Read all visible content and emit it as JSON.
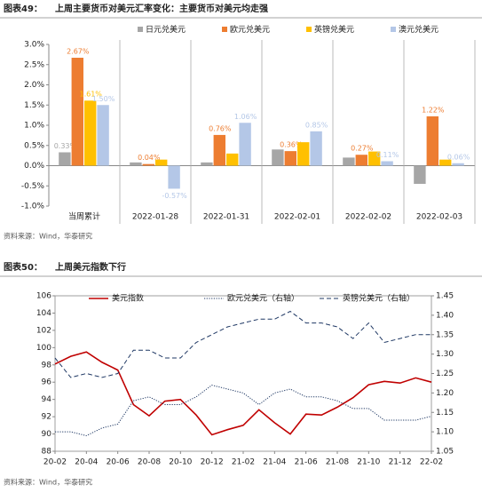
{
  "headers": [
    {
      "label": "图表49：",
      "title": "上周主要货币对美元汇率变化：主要货币对美元均走强"
    },
    {
      "label": "图表50：",
      "title": "上周美元指数下行"
    }
  ],
  "sources": [
    "资料来源：Wind，华泰研究",
    "资料来源：Wind，华泰研究"
  ],
  "chart_data": [
    {
      "type": "bar",
      "legend": "top",
      "categories": [
        "当周累计",
        "2022-01-28",
        "2022-01-31",
        "2022-02-01",
        "2022-02-02",
        "2022-02-03"
      ],
      "series": [
        {
          "name": "日元兑美元",
          "color": "#a6a6a6",
          "values": [
            0.33,
            0.08,
            0.08,
            0.4,
            0.2,
            -0.45
          ],
          "value_labels": [
            "0.33%",
            null,
            null,
            null,
            null,
            null
          ]
        },
        {
          "name": "欧元兑美元",
          "color": "#ed7d31",
          "values": [
            2.67,
            0.04,
            0.76,
            0.36,
            0.27,
            1.22
          ],
          "value_labels": [
            "2.67%",
            "0.04%",
            "0.76%",
            "0.36%",
            "0.27%",
            "1.22%"
          ]
        },
        {
          "name": "英镑兑美元",
          "color": "#ffc000",
          "values": [
            1.61,
            0.15,
            0.3,
            0.58,
            0.35,
            0.15
          ],
          "value_labels": [
            "1.61%",
            null,
            null,
            null,
            null,
            null
          ]
        },
        {
          "name": "澳元兑美元",
          "color": "#b4c7e7",
          "values": [
            1.5,
            -0.57,
            1.06,
            0.85,
            0.11,
            0.06
          ],
          "value_labels": [
            "1.50%",
            "-0.57%",
            "1.06%",
            "0.85%",
            "0.11%",
            "0.06%"
          ]
        }
      ],
      "ylim": [
        -1,
        3
      ],
      "yticks": [
        {
          "value": -1,
          "label": "-1.0%"
        },
        {
          "value": -0.5,
          "label": "-0.5%"
        },
        {
          "value": 0,
          "label": "0.0%"
        },
        {
          "value": 0.5,
          "label": "0.5%"
        },
        {
          "value": 1,
          "label": "1.0%"
        },
        {
          "value": 1.5,
          "label": "1.5%"
        },
        {
          "value": 2,
          "label": "2.0%"
        },
        {
          "value": 2.5,
          "label": "2.5%"
        },
        {
          "value": 3,
          "label": "3.0%"
        }
      ]
    },
    {
      "type": "line",
      "legend": "top",
      "categories": [
        "20-02",
        null,
        "20-04",
        null,
        "20-06",
        null,
        "20-08",
        null,
        "20-10",
        null,
        "20-12",
        null,
        "21-02",
        null,
        "21-04",
        null,
        "21-06",
        null,
        "21-08",
        null,
        "21-10",
        null,
        "21-12",
        null,
        "22-02"
      ],
      "series": [
        {
          "name": "美元指数",
          "color": "#c00000",
          "linestyle": "solid",
          "axis": "y",
          "values": [
            98.1,
            99.0,
            99.5,
            98.3,
            97.4,
            93.4,
            92.1,
            93.8,
            94.0,
            92.2,
            89.9,
            90.5,
            91.0,
            92.8,
            91.3,
            90.0,
            92.3,
            92.2,
            93.1,
            94.2,
            95.7,
            96.1,
            95.9,
            96.5,
            96.0
          ]
        },
        {
          "name": "欧元兑美元（右轴）",
          "color": "#1f3864",
          "linestyle": "dotted",
          "axis": "y2",
          "values": [
            1.1,
            1.1,
            1.09,
            1.11,
            1.12,
            1.18,
            1.19,
            1.17,
            1.17,
            1.19,
            1.22,
            1.21,
            1.2,
            1.17,
            1.2,
            1.21,
            1.19,
            1.19,
            1.18,
            1.16,
            1.16,
            1.13,
            1.13,
            1.13,
            1.14
          ]
        },
        {
          "name": "英镑兑美元（右轴）",
          "color": "#1f3864",
          "linestyle": "dashed",
          "axis": "y2",
          "values": [
            1.29,
            1.24,
            1.25,
            1.24,
            1.25,
            1.31,
            1.31,
            1.29,
            1.29,
            1.33,
            1.35,
            1.37,
            1.38,
            1.39,
            1.39,
            1.41,
            1.38,
            1.38,
            1.37,
            1.34,
            1.38,
            1.33,
            1.34,
            1.35,
            1.35
          ]
        }
      ],
      "ylim": [
        88,
        106
      ],
      "yticks": [
        88,
        90,
        92,
        94,
        96,
        98,
        100,
        102,
        104,
        106
      ],
      "y2lim": [
        1.05,
        1.45
      ],
      "y2ticks": [
        1.05,
        {
          "value": 1.1,
          "label": "1.10"
        },
        1.15,
        {
          "value": 1.2,
          "label": "1.20"
        },
        1.25,
        {
          "value": 1.3,
          "label": "1.30"
        },
        1.35,
        {
          "value": 1.4,
          "label": "1.40"
        },
        1.45
      ]
    }
  ]
}
